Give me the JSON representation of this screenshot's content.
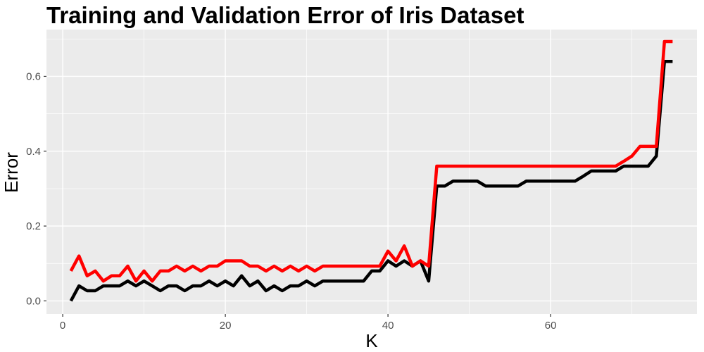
{
  "chart_data": {
    "type": "line",
    "title": "Training and Validation Error of Iris Dataset",
    "xlabel": "K",
    "ylabel": "Error",
    "xlim": [
      -2,
      78
    ],
    "ylim": [
      -0.035,
      0.725
    ],
    "xticks": [
      0,
      20,
      40,
      60
    ],
    "xtick_labels": [
      "0",
      "20",
      "40",
      "60"
    ],
    "yticks": [
      0,
      0.2,
      0.4,
      0.6
    ],
    "ytick_labels": [
      "0.0",
      "0.2",
      "0.4",
      "0.6"
    ],
    "grid": true,
    "background": "#ebebeb",
    "gridline_color": "#ffffff",
    "tick_color": "#333333",
    "series": [
      {
        "color": "#000000",
        "x": [
          1,
          2,
          3,
          4,
          5,
          6,
          7,
          8,
          9,
          10,
          11,
          12,
          13,
          14,
          15,
          16,
          17,
          18,
          19,
          20,
          21,
          22,
          23,
          24,
          25,
          26,
          27,
          28,
          29,
          30,
          31,
          32,
          33,
          34,
          35,
          36,
          37,
          38,
          39,
          40,
          41,
          42,
          43,
          44,
          45,
          46,
          47,
          48,
          49,
          50,
          51,
          52,
          53,
          54,
          55,
          56,
          57,
          58,
          59,
          60,
          61,
          62,
          63,
          64,
          65,
          66,
          67,
          68,
          69,
          70,
          71,
          72,
          73,
          74,
          75
        ],
        "values": [
          0,
          0.04,
          0.027,
          0.027,
          0.04,
          0.04,
          0.04,
          0.053,
          0.04,
          0.053,
          0.04,
          0.027,
          0.04,
          0.04,
          0.027,
          0.04,
          0.04,
          0.053,
          0.04,
          0.053,
          0.04,
          0.067,
          0.04,
          0.053,
          0.027,
          0.04,
          0.027,
          0.04,
          0.04,
          0.053,
          0.04,
          0.053,
          0.053,
          0.053,
          0.053,
          0.053,
          0.053,
          0.08,
          0.08,
          0.107,
          0.093,
          0.107,
          0.093,
          0.107,
          0.053,
          0.307,
          0.307,
          0.32,
          0.32,
          0.32,
          0.32,
          0.307,
          0.307,
          0.307,
          0.307,
          0.307,
          0.32,
          0.32,
          0.32,
          0.32,
          0.32,
          0.32,
          0.32,
          0.333,
          0.347,
          0.347,
          0.347,
          0.347,
          0.36,
          0.36,
          0.36,
          0.36,
          0.387,
          0.64,
          0.64
        ]
      },
      {
        "color": "#ff0000",
        "x": [
          1,
          2,
          3,
          4,
          5,
          6,
          7,
          8,
          9,
          10,
          11,
          12,
          13,
          14,
          15,
          16,
          17,
          18,
          19,
          20,
          21,
          22,
          23,
          24,
          25,
          26,
          27,
          28,
          29,
          30,
          31,
          32,
          33,
          34,
          35,
          36,
          37,
          38,
          39,
          40,
          41,
          42,
          43,
          44,
          45,
          46,
          47,
          48,
          49,
          50,
          51,
          52,
          53,
          54,
          55,
          56,
          57,
          58,
          59,
          60,
          61,
          62,
          63,
          64,
          65,
          66,
          67,
          68,
          69,
          70,
          71,
          72,
          73,
          74,
          75
        ],
        "values": [
          0.08,
          0.12,
          0.067,
          0.08,
          0.053,
          0.067,
          0.067,
          0.093,
          0.053,
          0.08,
          0.053,
          0.08,
          0.08,
          0.093,
          0.08,
          0.093,
          0.08,
          0.093,
          0.093,
          0.107,
          0.107,
          0.107,
          0.093,
          0.093,
          0.08,
          0.093,
          0.08,
          0.093,
          0.08,
          0.093,
          0.08,
          0.093,
          0.093,
          0.093,
          0.093,
          0.093,
          0.093,
          0.093,
          0.093,
          0.133,
          0.107,
          0.147,
          0.093,
          0.107,
          0.093,
          0.36,
          0.36,
          0.36,
          0.36,
          0.36,
          0.36,
          0.36,
          0.36,
          0.36,
          0.36,
          0.36,
          0.36,
          0.36,
          0.36,
          0.36,
          0.36,
          0.36,
          0.36,
          0.36,
          0.36,
          0.36,
          0.36,
          0.36,
          0.373,
          0.387,
          0.413,
          0.413,
          0.413,
          0.693,
          0.693
        ]
      }
    ]
  }
}
